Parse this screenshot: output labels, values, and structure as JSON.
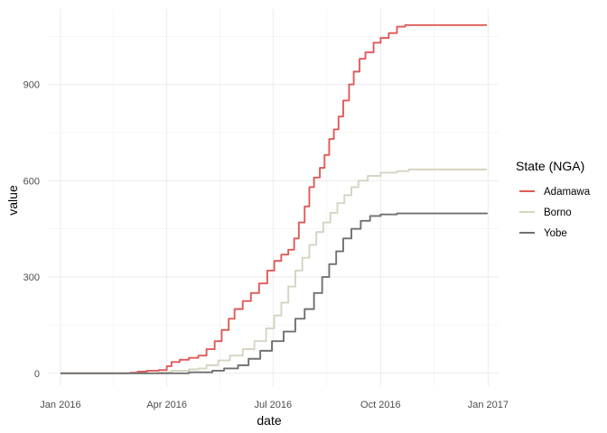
{
  "chart_data": {
    "type": "line",
    "title": "",
    "xlabel": "date",
    "ylabel": "value",
    "x_axis_type": "date",
    "xlim": [
      "2015-12-22",
      "2017-01-10"
    ],
    "ylim": [
      -40,
      1135
    ],
    "x_ticks": [
      {
        "date": "2016-01-01",
        "label": "Jan 2016"
      },
      {
        "date": "2016-04-01",
        "label": "Apr 2016"
      },
      {
        "date": "2016-07-01",
        "label": "Jul 2016"
      },
      {
        "date": "2016-10-01",
        "label": "Oct 2016"
      },
      {
        "date": "2017-01-01",
        "label": "Jan 2017"
      }
    ],
    "y_ticks": [
      {
        "value": 0,
        "label": "0"
      },
      {
        "value": 300,
        "label": "300"
      },
      {
        "value": 600,
        "label": "600"
      },
      {
        "value": 900,
        "label": "900"
      }
    ],
    "grid": true,
    "legend": {
      "title": "State (NGA)",
      "position": "right"
    },
    "series": [
      {
        "name": "Adamawa",
        "color": "#e05a58",
        "points": [
          [
            "2016-01-01",
            0
          ],
          [
            "2016-02-15",
            0
          ],
          [
            "2016-03-01",
            2
          ],
          [
            "2016-03-07",
            5
          ],
          [
            "2016-03-15",
            8
          ],
          [
            "2016-03-25",
            10
          ],
          [
            "2016-04-01",
            22
          ],
          [
            "2016-04-05",
            35
          ],
          [
            "2016-04-12",
            42
          ],
          [
            "2016-04-20",
            48
          ],
          [
            "2016-04-28",
            55
          ],
          [
            "2016-05-05",
            75
          ],
          [
            "2016-05-12",
            100
          ],
          [
            "2016-05-18",
            135
          ],
          [
            "2016-05-24",
            170
          ],
          [
            "2016-05-29",
            200
          ],
          [
            "2016-06-05",
            225
          ],
          [
            "2016-06-12",
            250
          ],
          [
            "2016-06-19",
            280
          ],
          [
            "2016-06-26",
            320
          ],
          [
            "2016-07-02",
            350
          ],
          [
            "2016-07-08",
            370
          ],
          [
            "2016-07-14",
            385
          ],
          [
            "2016-07-19",
            420
          ],
          [
            "2016-07-23",
            470
          ],
          [
            "2016-07-28",
            520
          ],
          [
            "2016-08-01",
            580
          ],
          [
            "2016-08-05",
            610
          ],
          [
            "2016-08-10",
            640
          ],
          [
            "2016-08-14",
            680
          ],
          [
            "2016-08-18",
            730
          ],
          [
            "2016-08-22",
            760
          ],
          [
            "2016-08-26",
            800
          ],
          [
            "2016-08-30",
            850
          ],
          [
            "2016-09-04",
            900
          ],
          [
            "2016-09-08",
            940
          ],
          [
            "2016-09-13",
            980
          ],
          [
            "2016-09-18",
            1000
          ],
          [
            "2016-09-25",
            1030
          ],
          [
            "2016-10-01",
            1045
          ],
          [
            "2016-10-08",
            1060
          ],
          [
            "2016-10-15",
            1080
          ],
          [
            "2016-10-22",
            1085
          ],
          [
            "2016-12-31",
            1085
          ]
        ]
      },
      {
        "name": "Borno",
        "color": "#d6d3c2",
        "points": [
          [
            "2016-01-01",
            0
          ],
          [
            "2016-03-15",
            0
          ],
          [
            "2016-03-25",
            3
          ],
          [
            "2016-04-05",
            8
          ],
          [
            "2016-04-20",
            12
          ],
          [
            "2016-04-28",
            15
          ],
          [
            "2016-05-05",
            25
          ],
          [
            "2016-05-15",
            40
          ],
          [
            "2016-05-25",
            55
          ],
          [
            "2016-06-05",
            75
          ],
          [
            "2016-06-15",
            100
          ],
          [
            "2016-06-25",
            140
          ],
          [
            "2016-07-02",
            180
          ],
          [
            "2016-07-08",
            220
          ],
          [
            "2016-07-14",
            270
          ],
          [
            "2016-07-20",
            320
          ],
          [
            "2016-07-26",
            360
          ],
          [
            "2016-08-01",
            400
          ],
          [
            "2016-08-07",
            440
          ],
          [
            "2016-08-13",
            470
          ],
          [
            "2016-08-19",
            500
          ],
          [
            "2016-08-25",
            530
          ],
          [
            "2016-08-31",
            555
          ],
          [
            "2016-09-06",
            580
          ],
          [
            "2016-09-12",
            600
          ],
          [
            "2016-09-20",
            615
          ],
          [
            "2016-10-01",
            625
          ],
          [
            "2016-10-15",
            630
          ],
          [
            "2016-10-25",
            635
          ],
          [
            "2016-12-31",
            635
          ]
        ]
      },
      {
        "name": "Yobe",
        "color": "#707070",
        "points": [
          [
            "2016-01-01",
            0
          ],
          [
            "2016-04-01",
            0
          ],
          [
            "2016-04-20",
            3
          ],
          [
            "2016-05-10",
            8
          ],
          [
            "2016-05-20",
            15
          ],
          [
            "2016-06-01",
            25
          ],
          [
            "2016-06-10",
            45
          ],
          [
            "2016-06-20",
            70
          ],
          [
            "2016-06-30",
            100
          ],
          [
            "2016-07-10",
            130
          ],
          [
            "2016-07-20",
            170
          ],
          [
            "2016-07-28",
            200
          ],
          [
            "2016-08-05",
            250
          ],
          [
            "2016-08-12",
            300
          ],
          [
            "2016-08-18",
            340
          ],
          [
            "2016-08-24",
            380
          ],
          [
            "2016-08-30",
            420
          ],
          [
            "2016-09-06",
            450
          ],
          [
            "2016-09-14",
            475
          ],
          [
            "2016-09-22",
            490
          ],
          [
            "2016-10-01",
            495
          ],
          [
            "2016-10-15",
            498
          ],
          [
            "2016-12-31",
            500
          ]
        ]
      }
    ]
  }
}
